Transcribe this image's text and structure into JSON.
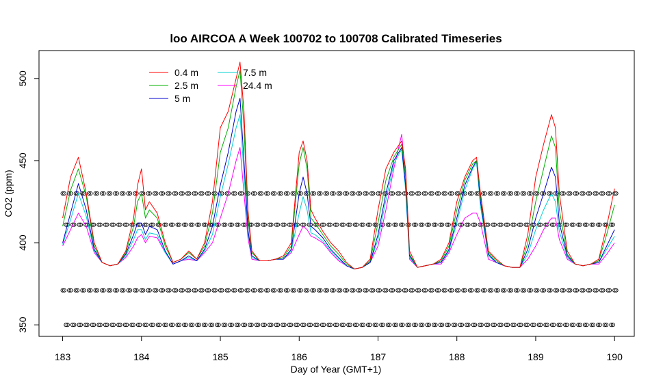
{
  "chart_data": {
    "type": "line",
    "title": "loo AIRCOA A  Week 100702 to 100708  Calibrated Timeseries",
    "xlabel": "Day of Year (GMT+1)",
    "ylabel": "CO2 (ppm)",
    "xlim": [
      182.7,
      190.25
    ],
    "ylim": [
      343,
      517
    ],
    "x_ticks": [
      183,
      184,
      185,
      186,
      187,
      188,
      189,
      190
    ],
    "y_ticks": [
      350,
      400,
      450,
      500
    ],
    "grid": false,
    "legend_position": "top-left",
    "series": [
      {
        "name": "0.4 m",
        "color": "#ff0000",
        "x": [
          183.0,
          183.1,
          183.2,
          183.3,
          183.4,
          183.5,
          183.6,
          183.7,
          183.8,
          183.9,
          183.95,
          184.0,
          184.05,
          184.1,
          184.2,
          184.3,
          184.4,
          184.5,
          184.6,
          184.7,
          184.8,
          184.9,
          185.0,
          185.1,
          185.2,
          185.25,
          185.3,
          185.35,
          185.4,
          185.5,
          185.6,
          185.7,
          185.8,
          185.9,
          186.0,
          186.05,
          186.1,
          186.15,
          186.2,
          186.3,
          186.4,
          186.5,
          186.6,
          186.7,
          186.8,
          186.9,
          187.0,
          187.1,
          187.2,
          187.3,
          187.35,
          187.4,
          187.5,
          187.6,
          187.7,
          187.8,
          187.9,
          188.0,
          188.1,
          188.2,
          188.25,
          188.3,
          188.4,
          188.5,
          188.6,
          188.7,
          188.8,
          188.9,
          189.0,
          189.1,
          189.2,
          189.25,
          189.3,
          189.4,
          189.5,
          189.6,
          189.7,
          189.8,
          189.9,
          190.0
        ],
        "y": [
          415,
          440,
          452,
          430,
          400,
          388,
          386,
          387,
          395,
          415,
          435,
          445,
          420,
          425,
          418,
          400,
          388,
          390,
          395,
          390,
          400,
          425,
          470,
          480,
          500,
          510,
          480,
          420,
          395,
          389,
          389,
          390,
          392,
          400,
          455,
          462,
          450,
          420,
          415,
          407,
          400,
          395,
          388,
          384,
          385,
          390,
          420,
          445,
          455,
          462,
          445,
          395,
          385,
          386,
          387,
          390,
          400,
          425,
          440,
          450,
          452,
          430,
          395,
          390,
          386,
          385,
          385,
          405,
          440,
          460,
          478,
          470,
          430,
          395,
          387,
          386,
          387,
          390,
          410,
          433
        ]
      },
      {
        "name": "2.5 m",
        "color": "#00b000",
        "x": [
          183.0,
          183.1,
          183.2,
          183.3,
          183.4,
          183.5,
          183.6,
          183.7,
          183.8,
          183.9,
          183.95,
          184.0,
          184.05,
          184.1,
          184.2,
          184.3,
          184.4,
          184.5,
          184.6,
          184.7,
          184.8,
          184.9,
          185.0,
          185.1,
          185.2,
          185.25,
          185.3,
          185.35,
          185.4,
          185.5,
          185.6,
          185.7,
          185.8,
          185.9,
          186.0,
          186.05,
          186.1,
          186.15,
          186.2,
          186.3,
          186.4,
          186.5,
          186.6,
          186.7,
          186.8,
          186.9,
          187.0,
          187.1,
          187.2,
          187.3,
          187.35,
          187.4,
          187.5,
          187.6,
          187.7,
          187.8,
          187.9,
          188.0,
          188.1,
          188.2,
          188.25,
          188.3,
          188.4,
          188.5,
          188.6,
          188.7,
          188.8,
          188.9,
          189.0,
          189.1,
          189.2,
          189.25,
          189.3,
          189.4,
          189.5,
          189.6,
          189.7,
          189.8,
          189.9,
          190.0
        ],
        "y": [
          410,
          432,
          445,
          428,
          398,
          388,
          386,
          387,
          394,
          410,
          425,
          430,
          415,
          420,
          415,
          398,
          388,
          390,
          394,
          390,
          398,
          418,
          455,
          470,
          495,
          505,
          470,
          415,
          394,
          389,
          389,
          390,
          391,
          398,
          448,
          458,
          445,
          415,
          412,
          405,
          398,
          393,
          387,
          384,
          385,
          389,
          412,
          438,
          452,
          460,
          440,
          393,
          385,
          386,
          387,
          389,
          398,
          420,
          438,
          448,
          450,
          428,
          394,
          389,
          386,
          385,
          385,
          400,
          425,
          445,
          465,
          458,
          420,
          393,
          387,
          386,
          387,
          389,
          405,
          423
        ]
      },
      {
        "name": "5 m",
        "color": "#0000cc",
        "x": [
          183.0,
          183.1,
          183.2,
          183.3,
          183.4,
          183.5,
          183.6,
          183.7,
          183.8,
          183.9,
          183.95,
          184.0,
          184.05,
          184.1,
          184.2,
          184.3,
          184.4,
          184.5,
          184.6,
          184.7,
          184.8,
          184.9,
          185.0,
          185.1,
          185.2,
          185.25,
          185.3,
          185.35,
          185.4,
          185.5,
          185.6,
          185.7,
          185.8,
          185.9,
          186.0,
          186.05,
          186.1,
          186.15,
          186.2,
          186.3,
          186.4,
          186.5,
          186.6,
          186.7,
          186.8,
          186.9,
          187.0,
          187.1,
          187.2,
          187.3,
          187.35,
          187.4,
          187.5,
          187.6,
          187.7,
          187.8,
          187.9,
          188.0,
          188.1,
          188.2,
          188.25,
          188.3,
          188.4,
          188.5,
          188.6,
          188.7,
          188.8,
          188.9,
          189.0,
          189.1,
          189.2,
          189.25,
          189.3,
          189.4,
          189.5,
          189.6,
          189.7,
          189.8,
          189.9,
          190.0
        ],
        "y": [
          400,
          418,
          436,
          420,
          396,
          388,
          386,
          387,
          393,
          405,
          412,
          412,
          405,
          410,
          408,
          395,
          387,
          389,
          392,
          389,
          396,
          410,
          435,
          455,
          480,
          488,
          450,
          408,
          392,
          389,
          389,
          390,
          390,
          396,
          430,
          440,
          430,
          410,
          408,
          403,
          396,
          391,
          386,
          384,
          385,
          388,
          405,
          430,
          450,
          458,
          435,
          392,
          385,
          386,
          387,
          388,
          396,
          415,
          435,
          446,
          450,
          425,
          393,
          388,
          386,
          385,
          385,
          396,
          415,
          430,
          446,
          440,
          412,
          392,
          387,
          386,
          387,
          388,
          398,
          408
        ]
      },
      {
        "name": "7.5 m",
        "color": "#00d0d0",
        "x": [
          183.0,
          183.1,
          183.2,
          183.3,
          183.4,
          183.5,
          183.6,
          183.7,
          183.8,
          183.9,
          183.95,
          184.0,
          184.05,
          184.1,
          184.2,
          184.3,
          184.4,
          184.5,
          184.6,
          184.7,
          184.8,
          184.9,
          185.0,
          185.1,
          185.2,
          185.25,
          185.3,
          185.35,
          185.4,
          185.5,
          185.6,
          185.7,
          185.8,
          185.9,
          186.0,
          186.05,
          186.1,
          186.15,
          186.2,
          186.3,
          186.4,
          186.5,
          186.6,
          186.7,
          186.8,
          186.9,
          187.0,
          187.1,
          187.2,
          187.3,
          187.35,
          187.4,
          187.5,
          187.6,
          187.7,
          187.8,
          187.9,
          188.0,
          188.1,
          188.2,
          188.25,
          188.3,
          188.4,
          188.5,
          188.6,
          188.7,
          188.8,
          188.9,
          189.0,
          189.1,
          189.2,
          189.25,
          189.3,
          189.4,
          189.5,
          189.6,
          189.7,
          189.8,
          189.9,
          190.0
        ],
        "y": [
          399,
          414,
          430,
          416,
          395,
          388,
          386,
          387,
          392,
          402,
          408,
          408,
          402,
          406,
          405,
          394,
          387,
          389,
          391,
          389,
          395,
          405,
          428,
          448,
          470,
          478,
          442,
          406,
          391,
          389,
          389,
          390,
          390,
          395,
          418,
          428,
          420,
          406,
          405,
          401,
          395,
          390,
          386,
          384,
          385,
          388,
          402,
          426,
          448,
          457,
          432,
          391,
          385,
          386,
          387,
          388,
          395,
          412,
          432,
          445,
          449,
          422,
          392,
          388,
          386,
          385,
          385,
          393,
          408,
          420,
          430,
          425,
          407,
          391,
          387,
          386,
          387,
          388,
          396,
          404
        ]
      },
      {
        "name": "24.4 m",
        "color": "#ff00ff",
        "x": [
          183.0,
          183.1,
          183.2,
          183.3,
          183.4,
          183.5,
          183.6,
          183.7,
          183.8,
          183.9,
          183.95,
          184.0,
          184.05,
          184.1,
          184.2,
          184.3,
          184.4,
          184.5,
          184.6,
          184.7,
          184.8,
          184.9,
          185.0,
          185.1,
          185.2,
          185.25,
          185.3,
          185.35,
          185.4,
          185.5,
          185.6,
          185.7,
          185.8,
          185.9,
          186.0,
          186.05,
          186.1,
          186.15,
          186.2,
          186.3,
          186.4,
          186.5,
          186.6,
          186.7,
          186.8,
          186.9,
          187.0,
          187.1,
          187.2,
          187.3,
          187.35,
          187.4,
          187.5,
          187.6,
          187.7,
          187.8,
          187.9,
          188.0,
          188.1,
          188.2,
          188.25,
          188.3,
          188.4,
          188.5,
          188.6,
          188.7,
          188.8,
          188.9,
          189.0,
          189.1,
          189.2,
          189.25,
          189.3,
          189.4,
          189.5,
          189.6,
          189.7,
          189.8,
          189.9,
          190.0
        ],
        "y": [
          398,
          408,
          418,
          410,
          394,
          388,
          386,
          387,
          391,
          398,
          403,
          405,
          400,
          404,
          403,
          394,
          387,
          389,
          390,
          389,
          394,
          400,
          415,
          430,
          450,
          458,
          430,
          403,
          390,
          389,
          389,
          390,
          390,
          394,
          405,
          410,
          408,
          404,
          403,
          400,
          394,
          389,
          386,
          384,
          385,
          388,
          398,
          420,
          445,
          466,
          440,
          390,
          385,
          386,
          387,
          387,
          394,
          405,
          415,
          418,
          418,
          412,
          390,
          388,
          386,
          385,
          385,
          390,
          398,
          408,
          415,
          415,
          402,
          390,
          387,
          386,
          387,
          387,
          393,
          400
        ]
      }
    ],
    "marker_rows": [
      {
        "name": "row1",
        "y": 430
      },
      {
        "name": "row2",
        "y": 411
      },
      {
        "name": "row3",
        "y": 371
      },
      {
        "name": "row4",
        "y": 350
      }
    ]
  }
}
